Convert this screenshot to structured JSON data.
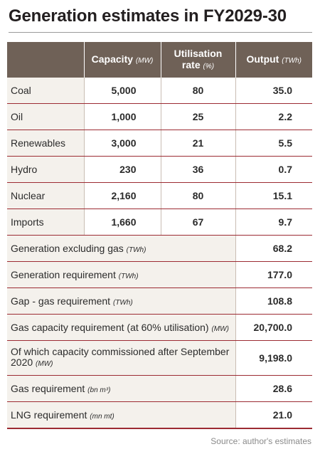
{
  "title": "Generation estimates in FY2029-30",
  "headers": {
    "capacity": "Capacity",
    "capacity_unit": "(MW)",
    "util_line1": "Utilisation",
    "util_line2": "rate",
    "util_unit": "(%)",
    "output": "Output",
    "output_unit": "(TWh)"
  },
  "rows": [
    {
      "name": "Coal",
      "capacity": "5,000",
      "util": "80",
      "output": "35.0"
    },
    {
      "name": "Oil",
      "capacity": "1,000",
      "util": "25",
      "output": "2.2"
    },
    {
      "name": "Renewables",
      "capacity": "3,000",
      "util": "21",
      "output": "5.5"
    },
    {
      "name": "Hydro",
      "capacity": "230",
      "util": "36",
      "output": "0.7"
    },
    {
      "name": "Nuclear",
      "capacity": "2,160",
      "util": "80",
      "output": "15.1"
    },
    {
      "name": "Imports",
      "capacity": "1,660",
      "util": "67",
      "output": "9.7"
    }
  ],
  "summary": [
    {
      "label": "Generation excluding gas",
      "unit": "(TWh)",
      "value": "68.2"
    },
    {
      "label": "Generation requirement",
      "unit": "(TWh)",
      "value": "177.0"
    },
    {
      "label": "Gap - gas requirement",
      "unit": "(TWh)",
      "value": "108.8"
    },
    {
      "label": "Gas capacity requirement (at 60% utilisation)",
      "unit": "(MW)",
      "value": "20,700.0"
    },
    {
      "label": "Of which capacity commissioned after September 2020",
      "unit": "(MW)",
      "value": "9,198.0"
    },
    {
      "label": "Gas requirement",
      "unit": "(bn m³)",
      "value": "28.6"
    },
    {
      "label": "LNG requirement",
      "unit": "(mn mt)",
      "value": "21.0"
    }
  ],
  "source": "Source: author's estimates",
  "colors": {
    "header_bg": "#6f6157",
    "row_rule": "#9c2b33",
    "label_bg": "#f4f1ec"
  }
}
